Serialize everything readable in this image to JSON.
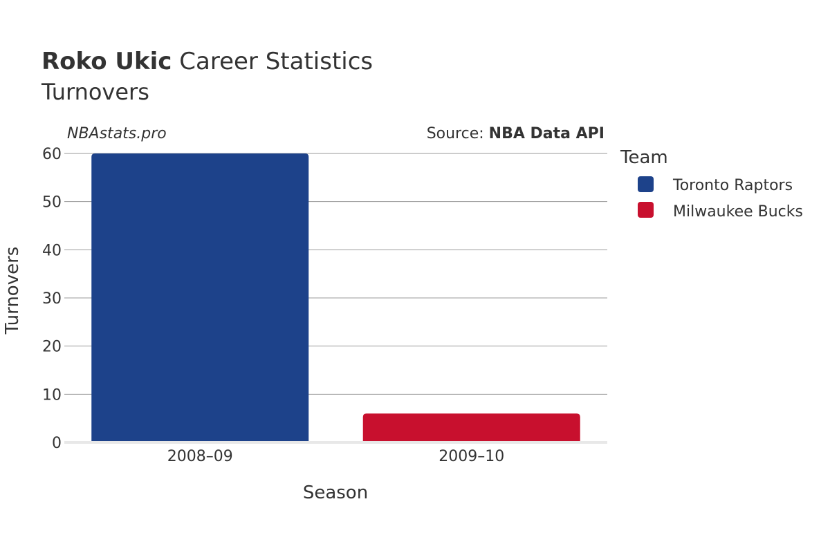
{
  "header": {
    "title_bold": "Roko Ukic",
    "title_rest": " Career Statistics",
    "subtitle": "Turnovers"
  },
  "watermark": "NBAstats.pro",
  "source": {
    "prefix": "Source: ",
    "name": "NBA Data API"
  },
  "legend": {
    "title": "Team",
    "items": [
      {
        "label": "Toronto Raptors",
        "color": "#1d428a"
      },
      {
        "label": "Milwaukee Bucks",
        "color": "#c8102e"
      }
    ]
  },
  "chart_data": {
    "type": "bar",
    "categories": [
      "2008–09",
      "2009–10"
    ],
    "series": [
      {
        "name": "Toronto Raptors",
        "color": "#1d428a",
        "values": [
          60,
          null
        ]
      },
      {
        "name": "Milwaukee Bucks",
        "color": "#c8102e",
        "values": [
          null,
          6
        ]
      }
    ],
    "xlabel": "Season",
    "ylabel": "Turnovers",
    "ylim": [
      0,
      60
    ],
    "yticks": [
      0,
      10,
      20,
      30,
      40,
      50,
      60
    ],
    "grid": true,
    "legend_position": "right"
  }
}
